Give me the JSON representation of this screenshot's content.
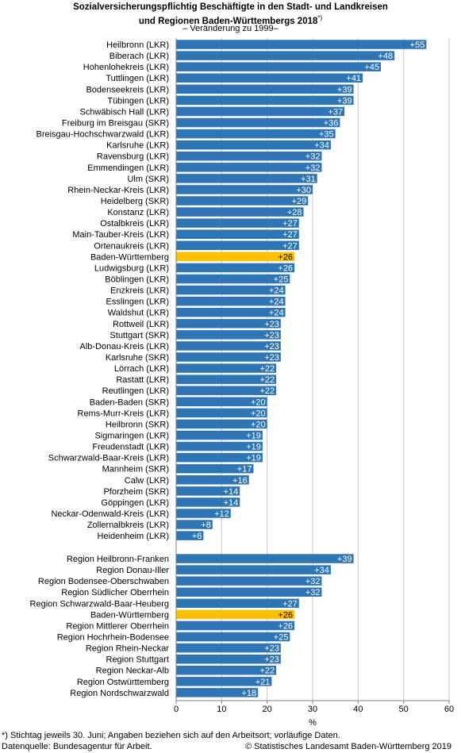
{
  "title_line1": "Sozialversicherungspflichtig Beschäftigte in den Stadt- und Landkreisen",
  "title_line2": "und Regionen Baden-Württembergs 2018",
  "title_note": "*)",
  "subtitle": "– Veränderung zu 1999–",
  "footnote": "*) Stichtag jeweils 30. Juni; Angaben beziehen sich auf den Arbeitsort; vorläufige Daten.",
  "source": "Datenquelle: Bundesagentur für Arbeit.",
  "copyright": "© Statistisches Landesamt Baden-Württemberg 2019",
  "chart_data": {
    "type": "bar",
    "orientation": "horizontal",
    "xlabel": "%",
    "xlim": [
      0,
      60
    ],
    "xticks": [
      0,
      10,
      20,
      30,
      40,
      50,
      60
    ],
    "grid": true,
    "colors": {
      "bar": "#2e75b6",
      "highlight": "#ffc000",
      "grid": "#c8c8c8",
      "label": "#ffffff"
    },
    "groups": [
      {
        "categories": [
          "Heilbronn (LKR)",
          "Biberach (LKR)",
          "Hohenlohekreis (LKR)",
          "Tuttlingen (LKR)",
          "Bodenseekreis (LKR)",
          "Tübingen (LKR)",
          "Schwäbisch Hall (LKR)",
          "Freiburg im Breisgau (SKR)",
          "Breisgau-Hochschwarzwald (LKR)",
          "Karlsruhe (LKR)",
          "Ravensburg (LKR)",
          "Emmendingen (LKR)",
          "Ulm (SKR)",
          "Rhein-Neckar-Kreis (LKR)",
          "Heidelberg (SKR)",
          "Konstanz (LKR)",
          "Ostalbkreis (LKR)",
          "Main-Tauber-Kreis (LKR)",
          "Ortenaukreis (LKR)",
          "Baden-Württemberg",
          "Ludwigsburg (LKR)",
          "Böblingen (LKR)",
          "Enzkreis (LKR)",
          "Esslingen (LKR)",
          "Waldshut (LKR)",
          "Rottweil (LKR)",
          "Stuttgart (SKR)",
          "Alb-Donau-Kreis (LKR)",
          "Karlsruhe (SKR)",
          "Lörrach (LKR)",
          "Rastatt (LKR)",
          "Reutlingen (LKR)",
          "Baden-Baden (SKR)",
          "Rems-Murr-Kreis (LKR)",
          "Heilbronn (SKR)",
          "Sigmaringen (LKR)",
          "Freudenstadt (LKR)",
          "Schwarzwald-Baar-Kreis (LKR)",
          "Mannheim (SKR)",
          "Calw (LKR)",
          "Pforzheim (SKR)",
          "Göppingen (LKR)",
          "Neckar-Odenwald-Kreis (LKR)",
          "Zollernalbkreis (LKR)",
          "Heidenheim (LKR)"
        ],
        "values": [
          55,
          48,
          45,
          41,
          39,
          39,
          37,
          36,
          35,
          34,
          32,
          32,
          31,
          30,
          29,
          28,
          27,
          27,
          27,
          26,
          26,
          25,
          24,
          24,
          24,
          23,
          23,
          23,
          23,
          22,
          22,
          22,
          20,
          20,
          20,
          19,
          19,
          19,
          17,
          16,
          14,
          14,
          12,
          8,
          6
        ],
        "labels": [
          "+55",
          "+48",
          "+45",
          "+41",
          "+39",
          "+39",
          "+37",
          "+36",
          "+35",
          "+34",
          "+32",
          "+32",
          "+31",
          "+30",
          "+29",
          "+28",
          "+27",
          "+27",
          "+27",
          "+26",
          "+26",
          "+25",
          "+24",
          "+24",
          "+24",
          "+23",
          "+23",
          "+23",
          "+23",
          "+22",
          "+22",
          "+22",
          "+20",
          "+20",
          "+20",
          "+19",
          "+19",
          "+19",
          "+17",
          "+16",
          "+14",
          "+14",
          "+12",
          "+8",
          "+6"
        ],
        "highlight": [
          "Baden-Württemberg"
        ]
      },
      {
        "categories": [
          "Region Heilbronn-Franken",
          "Region Donau-Iller",
          "Region Bodensee-Oberschwaben",
          "Region Südlicher Oberrhein",
          "Region Schwarzwald-Baar-Heuberg",
          "Baden-Württemberg",
          "Region Mittlerer Oberrhein",
          "Region Hochrhein-Bodensee",
          "Region Rhein-Neckar",
          "Region Stuttgart",
          "Region Neckar-Alb",
          "Region Ostwürttemberg",
          "Region Nordschwarzwald"
        ],
        "values": [
          39,
          34,
          32,
          32,
          27,
          26,
          26,
          25,
          23,
          23,
          22,
          21,
          18
        ],
        "labels": [
          "+39",
          "+34",
          "+32",
          "+32",
          "+27",
          "+26",
          "+26",
          "+25",
          "+23",
          "+23",
          "+22",
          "+21",
          "+18"
        ],
        "highlight": [
          "Baden-Württemberg"
        ]
      }
    ]
  }
}
